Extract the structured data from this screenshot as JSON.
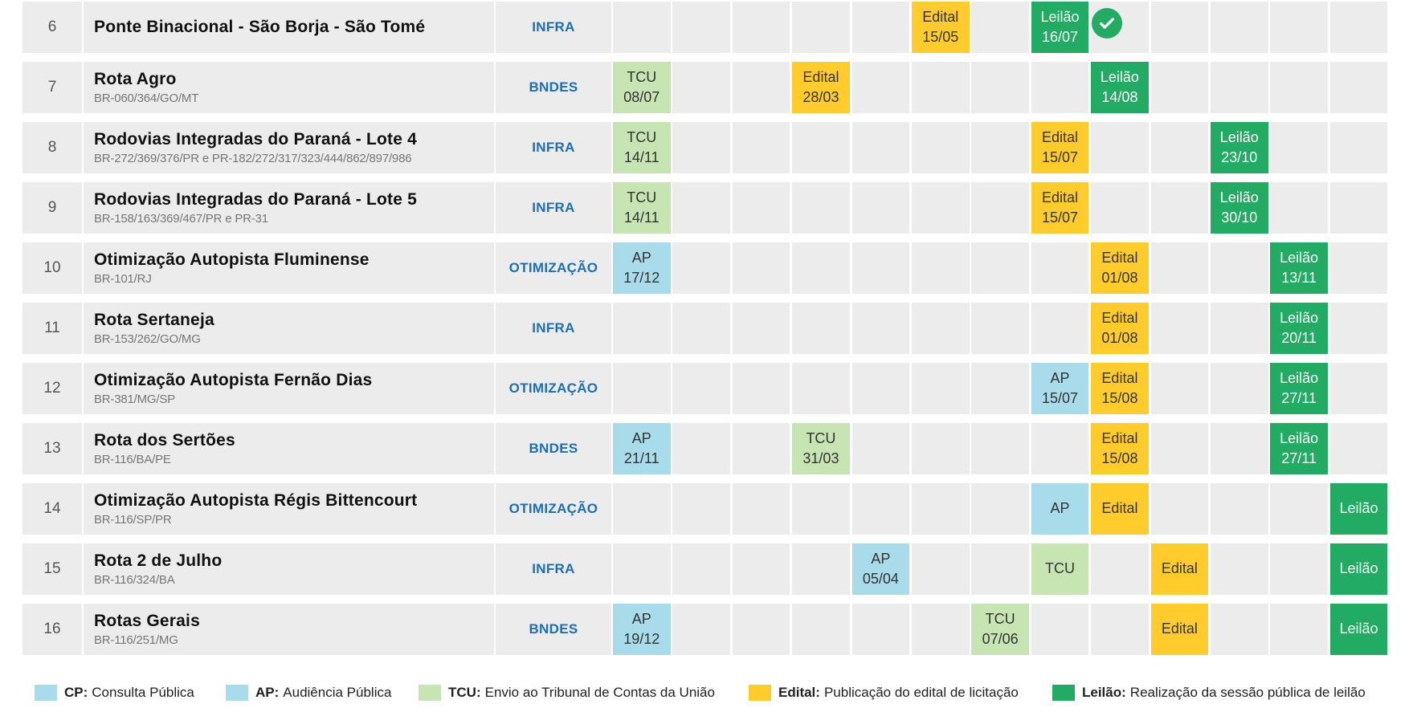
{
  "rows": [
    {
      "num": "6",
      "title": "Ponte Binacional - São Borja - São Tomé",
      "sub": "",
      "cat": "INFRA",
      "milestones": [
        {
          "col": 5,
          "type": "edital",
          "label": "Edital",
          "date": "15/05"
        },
        {
          "col": 7,
          "type": "leilao",
          "label": "Leilão",
          "date": "16/07"
        }
      ],
      "done": true
    },
    {
      "num": "7",
      "title": "Rota Agro",
      "sub": "BR-060/364/GO/MT",
      "cat": "BNDES",
      "milestones": [
        {
          "col": 0,
          "type": "tcu",
          "label": "TCU",
          "date": "08/07"
        },
        {
          "col": 3,
          "type": "edital",
          "label": "Edital",
          "date": "28/03"
        },
        {
          "col": 8,
          "type": "leilao",
          "label": "Leilão",
          "date": "14/08"
        }
      ]
    },
    {
      "num": "8",
      "title": "Rodovias Integradas do Paraná - Lote 4",
      "sub": "BR-272/369/376/PR e PR-182/272/317/323/444/862/897/986",
      "cat": "INFRA",
      "milestones": [
        {
          "col": 0,
          "type": "tcu",
          "label": "TCU",
          "date": "14/11"
        },
        {
          "col": 7,
          "type": "edital",
          "label": "Edital",
          "date": "15/07"
        },
        {
          "col": 10,
          "type": "leilao",
          "label": "Leilão",
          "date": "23/10"
        }
      ]
    },
    {
      "num": "9",
      "title": "Rodovias Integradas do Paraná - Lote 5",
      "sub": "BR-158/163/369/467/PR e PR-31",
      "cat": "INFRA",
      "milestones": [
        {
          "col": 0,
          "type": "tcu",
          "label": "TCU",
          "date": "14/11"
        },
        {
          "col": 7,
          "type": "edital",
          "label": "Edital",
          "date": "15/07"
        },
        {
          "col": 10,
          "type": "leilao",
          "label": "Leilão",
          "date": "30/10"
        }
      ]
    },
    {
      "num": "10",
      "title": "Otimização Autopista Fluminense",
      "sub": "BR-101/RJ",
      "cat": "OTIMIZAÇÃO",
      "milestones": [
        {
          "col": 0,
          "type": "ap",
          "label": "AP",
          "date": "17/12"
        },
        {
          "col": 8,
          "type": "edital",
          "label": "Edital",
          "date": "01/08"
        },
        {
          "col": 11,
          "type": "leilao",
          "label": "Leilão",
          "date": "13/11"
        }
      ]
    },
    {
      "num": "11",
      "title": "Rota Sertaneja",
      "sub": "BR-153/262/GO/MG",
      "cat": "INFRA",
      "milestones": [
        {
          "col": 8,
          "type": "edital",
          "label": "Edital",
          "date": "01/08"
        },
        {
          "col": 11,
          "type": "leilao",
          "label": "Leilão",
          "date": "20/11"
        }
      ]
    },
    {
      "num": "12",
      "title": "Otimização Autopista Fernão Dias",
      "sub": "BR-381/MG/SP",
      "cat": "OTIMIZAÇÃO",
      "milestones": [
        {
          "col": 7,
          "type": "ap",
          "label": "AP",
          "date": "15/07"
        },
        {
          "col": 8,
          "type": "edital",
          "label": "Edital",
          "date": "15/08"
        },
        {
          "col": 11,
          "type": "leilao",
          "label": "Leilão",
          "date": "27/11"
        }
      ]
    },
    {
      "num": "13",
      "title": "Rota dos Sertões",
      "sub": "BR-116/BA/PE",
      "cat": "BNDES",
      "milestones": [
        {
          "col": 0,
          "type": "ap",
          "label": "AP",
          "date": "21/11"
        },
        {
          "col": 3,
          "type": "tcu",
          "label": "TCU",
          "date": "31/03"
        },
        {
          "col": 8,
          "type": "edital",
          "label": "Edital",
          "date": "15/08"
        },
        {
          "col": 11,
          "type": "leilao",
          "label": "Leilão",
          "date": "27/11"
        }
      ]
    },
    {
      "num": "14",
      "title": "Otimização Autopista Régis Bittencourt",
      "sub": "BR-116/SP/PR",
      "cat": "OTIMIZAÇÃO",
      "milestones": [
        {
          "col": 7,
          "type": "ap",
          "label": "AP",
          "date": ""
        },
        {
          "col": 8,
          "type": "edital",
          "label": "Edital",
          "date": ""
        },
        {
          "col": 12,
          "type": "leilao",
          "label": "Leilão",
          "date": ""
        }
      ]
    },
    {
      "num": "15",
      "title": "Rota 2 de Julho",
      "sub": "BR-116/324/BA",
      "cat": "INFRA",
      "milestones": [
        {
          "col": 4,
          "type": "ap",
          "label": "AP",
          "date": "05/04"
        },
        {
          "col": 7,
          "type": "tcu",
          "label": "TCU",
          "date": ""
        },
        {
          "col": 9,
          "type": "edital",
          "label": "Edital",
          "date": ""
        },
        {
          "col": 12,
          "type": "leilao",
          "label": "Leilão",
          "date": ""
        }
      ]
    },
    {
      "num": "16",
      "title": "Rotas Gerais",
      "sub": "BR-116/251/MG",
      "cat": "BNDES",
      "milestones": [
        {
          "col": 0,
          "type": "ap",
          "label": "AP",
          "date": "19/12"
        },
        {
          "col": 6,
          "type": "tcu",
          "label": "TCU",
          "date": "07/06"
        },
        {
          "col": 9,
          "type": "edital",
          "label": "Edital",
          "date": ""
        },
        {
          "col": 12,
          "type": "leilao",
          "label": "Leilão",
          "date": ""
        }
      ]
    }
  ],
  "legend": [
    {
      "type": "cp",
      "key": "CP:",
      "text": "Consulta Pública"
    },
    {
      "type": "ap",
      "key": "AP:",
      "text": "Audiência Pública"
    },
    {
      "type": "tcu",
      "key": "TCU:",
      "text": "Envio ao Tribunal de Contas da União"
    },
    {
      "type": "edital",
      "key": "Edital:",
      "text": "Publicação do edital de licitação"
    },
    {
      "type": "leilao",
      "key": "Leilão:",
      "text": "Realização da sessão pública de leilão"
    }
  ],
  "colors": {
    "cp": "#a9dcea",
    "ap": "#a9dcea",
    "tcu": "#c7e4b3",
    "edital": "#ffcc2b",
    "leilao": "#22ab62",
    "category": "#1b6fb8"
  }
}
